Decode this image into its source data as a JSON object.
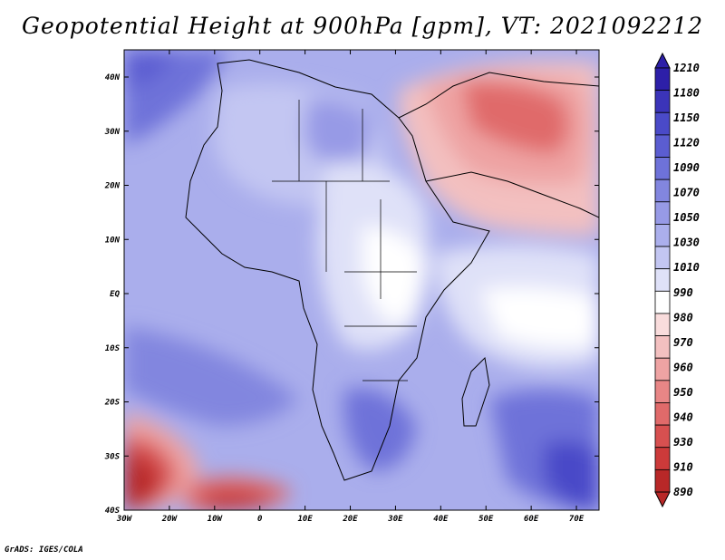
{
  "title": "Geopotential Height at 900hPa [gpm], VT: 2021092212",
  "credit": "GrADS: IGES/COLA",
  "map": {
    "lon_range": [
      -30,
      75
    ],
    "lat_range": [
      -40,
      45
    ],
    "x_ticks": [
      {
        "label": "30W"
      },
      {
        "label": "20W"
      },
      {
        "label": "10W"
      },
      {
        "label": "0"
      },
      {
        "label": "10E"
      },
      {
        "label": "20E"
      },
      {
        "label": "30E"
      },
      {
        "label": "40E"
      },
      {
        "label": "50E"
      },
      {
        "label": "60E"
      },
      {
        "label": "70E"
      }
    ],
    "y_ticks": [
      {
        "label": "40N"
      },
      {
        "label": "30N"
      },
      {
        "label": "20N"
      },
      {
        "label": "10N"
      },
      {
        "label": "EQ"
      },
      {
        "label": "10S"
      },
      {
        "label": "20S"
      },
      {
        "label": "30S"
      },
      {
        "label": "40S"
      }
    ]
  },
  "colorbar": {
    "levels": [
      "1210",
      "1180",
      "1150",
      "1120",
      "1090",
      "1070",
      "1050",
      "1030",
      "1010",
      "990",
      "980",
      "970",
      "960",
      "950",
      "940",
      "930",
      "910",
      "890"
    ],
    "colors": [
      "#2d1fa8",
      "#3b34b9",
      "#4a4ac8",
      "#5b5dd1",
      "#6e72d9",
      "#8286df",
      "#979ae6",
      "#abafec",
      "#c3c6f2",
      "#dfe1f8",
      "#ffffff",
      "#f9dcdc",
      "#f3c0c0",
      "#eea3a3",
      "#e88686",
      "#e06a6a",
      "#d75050",
      "#cc3a3a",
      "#b82828"
    ]
  }
}
